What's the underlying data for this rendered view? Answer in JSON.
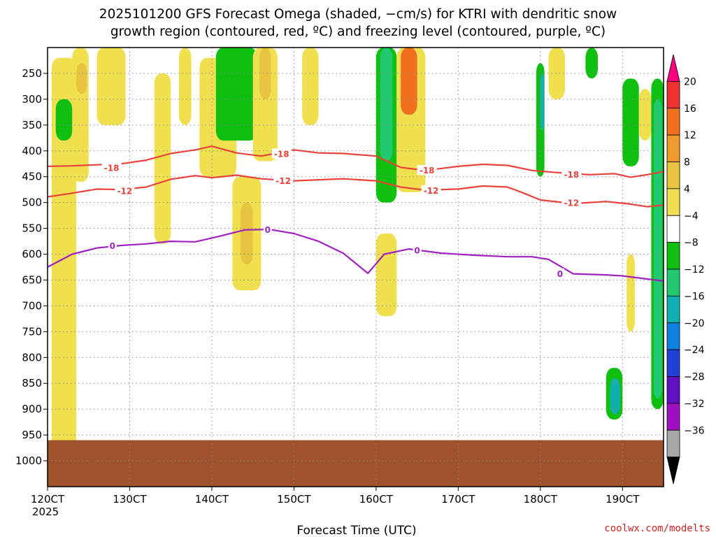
{
  "title_line1": "2025101200 GFS Forecast Omega (shaded, −cm/s) for KTRI with dendritic snow",
  "title_line2": "growth region (contoured, red, ºC) and freezing level (contoured, purple, ºC)",
  "credit": "coolwx.com/modelts",
  "colors": {
    "ground": "#a0522d",
    "dgz_contour": "#e8423a",
    "freezing_contour": "#a020c0",
    "grid": "#888888"
  },
  "chart_data": {
    "type": "heatmap",
    "title": "2025101200 GFS Forecast Omega (shaded, −cm/s) for KTRI with dendritic snow growth region (contoured, red, ºC) and freezing level (contoured, purple, ºC)",
    "xlabel": "Forecast Time (UTC)",
    "ylabel": "",
    "x_ticks": [
      "120CT",
      "130CT",
      "140CT",
      "150CT",
      "160CT",
      "170CT",
      "180CT",
      "190CT"
    ],
    "x_sub": "2025",
    "x_range_days": [
      12.0,
      19.5
    ],
    "y_ticks": [
      250,
      300,
      350,
      400,
      450,
      500,
      550,
      600,
      650,
      700,
      750,
      800,
      850,
      900,
      950,
      1000
    ],
    "y_range_hpa": [
      200,
      1050
    ],
    "colorbar": {
      "labels": [
        20,
        16,
        12,
        8,
        4,
        -4,
        -8,
        -12,
        -16,
        -20,
        -24,
        -28,
        -32,
        -36
      ],
      "colors": [
        "#ff007f",
        "#f03030",
        "#f07020",
        "#f09c2c",
        "#e8c440",
        "#f0e050",
        "#ffffff",
        "#10c010",
        "#20c870",
        "#10b0b0",
        "#1080e0",
        "#2040d8",
        "#6010c0",
        "#a010c0",
        "#a8a8a8",
        "#000000"
      ]
    },
    "contours": [
      {
        "kind": "dgz",
        "level": -18,
        "label": "-18",
        "points": [
          [
            12.0,
            430
          ],
          [
            12.3,
            429
          ],
          [
            12.6,
            427
          ],
          [
            12.9,
            425
          ],
          [
            13.2,
            418
          ],
          [
            13.5,
            405
          ],
          [
            13.8,
            398
          ],
          [
            14.0,
            391
          ],
          [
            14.3,
            404
          ],
          [
            14.6,
            410
          ],
          [
            15.0,
            398
          ],
          [
            15.3,
            404
          ],
          [
            15.6,
            405
          ],
          [
            16.0,
            410
          ],
          [
            16.3,
            432
          ],
          [
            16.6,
            438
          ],
          [
            17.0,
            430
          ],
          [
            17.3,
            426
          ],
          [
            17.6,
            428
          ],
          [
            17.9,
            438
          ],
          [
            18.2,
            442
          ],
          [
            18.6,
            446
          ],
          [
            18.9,
            444
          ],
          [
            19.1,
            451
          ],
          [
            19.3,
            446
          ],
          [
            19.5,
            440
          ]
        ]
      },
      {
        "kind": "dgz",
        "level": -12,
        "label": "-12",
        "points": [
          [
            12.0,
            489
          ],
          [
            12.3,
            482
          ],
          [
            12.6,
            474
          ],
          [
            12.9,
            475
          ],
          [
            13.2,
            470
          ],
          [
            13.5,
            455
          ],
          [
            13.8,
            448
          ],
          [
            14.0,
            452
          ],
          [
            14.3,
            447
          ],
          [
            14.6,
            454
          ],
          [
            15.0,
            458
          ],
          [
            15.3,
            456
          ],
          [
            15.6,
            454
          ],
          [
            16.0,
            458
          ],
          [
            16.3,
            470
          ],
          [
            16.6,
            476
          ],
          [
            17.0,
            474
          ],
          [
            17.3,
            468
          ],
          [
            17.6,
            470
          ],
          [
            17.8,
            482
          ],
          [
            18.0,
            495
          ],
          [
            18.4,
            502
          ],
          [
            18.8,
            498
          ],
          [
            19.1,
            503
          ],
          [
            19.3,
            508
          ],
          [
            19.5,
            505
          ]
        ]
      },
      {
        "kind": "freezing",
        "level": 0,
        "label": "0",
        "points": [
          [
            12.0,
            625
          ],
          [
            12.3,
            600
          ],
          [
            12.6,
            588
          ],
          [
            12.9,
            583
          ],
          [
            13.2,
            580
          ],
          [
            13.5,
            575
          ],
          [
            13.8,
            576
          ],
          [
            14.1,
            565
          ],
          [
            14.4,
            553
          ],
          [
            14.7,
            552
          ],
          [
            15.0,
            560
          ],
          [
            15.3,
            575
          ],
          [
            15.6,
            598
          ],
          [
            15.9,
            637
          ],
          [
            16.1,
            600
          ],
          [
            16.4,
            590
          ],
          [
            16.8,
            598
          ],
          [
            17.2,
            602
          ],
          [
            17.6,
            605
          ],
          [
            17.9,
            605
          ],
          [
            18.1,
            610
          ],
          [
            18.4,
            638
          ],
          [
            18.8,
            640
          ],
          [
            19.0,
            642
          ],
          [
            19.3,
            648
          ],
          [
            19.5,
            652
          ]
        ]
      }
    ],
    "contour_label_positions": [
      {
        "label": "-18",
        "x": 12.78,
        "y": 432
      },
      {
        "label": "-18",
        "x": 14.85,
        "y": 405
      },
      {
        "label": "-18",
        "x": 16.62,
        "y": 437
      },
      {
        "label": "-18",
        "x": 18.38,
        "y": 445
      },
      {
        "label": "-12",
        "x": 12.94,
        "y": 477
      },
      {
        "label": "-12",
        "x": 14.87,
        "y": 457
      },
      {
        "label": "-12",
        "x": 16.67,
        "y": 476
      },
      {
        "label": "-12",
        "x": 18.38,
        "y": 500
      },
      {
        "label": "0",
        "x": 12.79,
        "y": 583
      },
      {
        "label": "0",
        "x": 14.68,
        "y": 552
      },
      {
        "label": "0",
        "x": 16.5,
        "y": 592
      },
      {
        "label": "0",
        "x": 18.24,
        "y": 637
      }
    ],
    "omega_regions": [
      {
        "x0": 12.05,
        "x1": 12.35,
        "p0": 220,
        "p1": 1000,
        "c": "#f0e050"
      },
      {
        "x0": 12.3,
        "x1": 12.5,
        "p0": 200,
        "p1": 460,
        "c": "#f0e050"
      },
      {
        "x0": 12.35,
        "x1": 12.48,
        "p0": 230,
        "p1": 290,
        "c": "#e8c440"
      },
      {
        "x0": 12.1,
        "x1": 12.3,
        "p0": 300,
        "p1": 380,
        "c": "#10c010"
      },
      {
        "x0": 12.6,
        "x1": 12.95,
        "p0": 200,
        "p1": 350,
        "c": "#f0e050"
      },
      {
        "x0": 13.3,
        "x1": 13.5,
        "p0": 250,
        "p1": 580,
        "c": "#f0e050"
      },
      {
        "x0": 13.6,
        "x1": 13.75,
        "p0": 200,
        "p1": 350,
        "c": "#f0e050"
      },
      {
        "x0": 13.85,
        "x1": 14.3,
        "p0": 220,
        "p1": 450,
        "c": "#f0e050"
      },
      {
        "x0": 14.05,
        "x1": 14.55,
        "p0": 200,
        "p1": 380,
        "c": "#10c010"
      },
      {
        "x0": 14.25,
        "x1": 14.6,
        "p0": 450,
        "p1": 670,
        "c": "#f0e050"
      },
      {
        "x0": 14.35,
        "x1": 14.5,
        "p0": 500,
        "p1": 620,
        "c": "#e8c440"
      },
      {
        "x0": 14.5,
        "x1": 14.8,
        "p0": 200,
        "p1": 420,
        "c": "#f0e050"
      },
      {
        "x0": 14.58,
        "x1": 14.72,
        "p0": 200,
        "p1": 300,
        "c": "#e8c440"
      },
      {
        "x0": 15.1,
        "x1": 15.3,
        "p0": 200,
        "p1": 350,
        "c": "#f0e050"
      },
      {
        "x0": 16.0,
        "x1": 16.25,
        "p0": 200,
        "p1": 500,
        "c": "#10c010"
      },
      {
        "x0": 16.05,
        "x1": 16.2,
        "p0": 200,
        "p1": 420,
        "c": "#20c870"
      },
      {
        "x0": 16.25,
        "x1": 16.6,
        "p0": 200,
        "p1": 480,
        "c": "#f0e050"
      },
      {
        "x0": 16.3,
        "x1": 16.5,
        "p0": 200,
        "p1": 330,
        "c": "#f07020"
      },
      {
        "x0": 16.0,
        "x1": 16.25,
        "p0": 560,
        "p1": 720,
        "c": "#f0e050"
      },
      {
        "x0": 17.95,
        "x1": 18.05,
        "p0": 230,
        "p1": 450,
        "c": "#10c010"
      },
      {
        "x0": 18.0,
        "x1": 18.05,
        "p0": 250,
        "p1": 360,
        "c": "#10b0b0"
      },
      {
        "x0": 18.1,
        "x1": 18.3,
        "p0": 200,
        "p1": 300,
        "c": "#f0e050"
      },
      {
        "x0": 18.55,
        "x1": 18.7,
        "p0": 200,
        "p1": 260,
        "c": "#10c010"
      },
      {
        "x0": 19.0,
        "x1": 19.2,
        "p0": 260,
        "p1": 430,
        "c": "#10c010"
      },
      {
        "x0": 19.2,
        "x1": 19.35,
        "p0": 280,
        "p1": 380,
        "c": "#f0e050"
      },
      {
        "x0": 19.35,
        "x1": 19.5,
        "p0": 260,
        "p1": 900,
        "c": "#10c010"
      },
      {
        "x0": 19.38,
        "x1": 19.48,
        "p0": 300,
        "p1": 880,
        "c": "#20c870"
      },
      {
        "x0": 18.8,
        "x1": 19.0,
        "p0": 820,
        "p1": 920,
        "c": "#10c010"
      },
      {
        "x0": 18.85,
        "x1": 18.97,
        "p0": 840,
        "p1": 910,
        "c": "#10b0b0"
      },
      {
        "x0": 19.05,
        "x1": 19.15,
        "p0": 600,
        "p1": 750,
        "c": "#f0e050"
      }
    ],
    "ground_pressure": 960
  }
}
